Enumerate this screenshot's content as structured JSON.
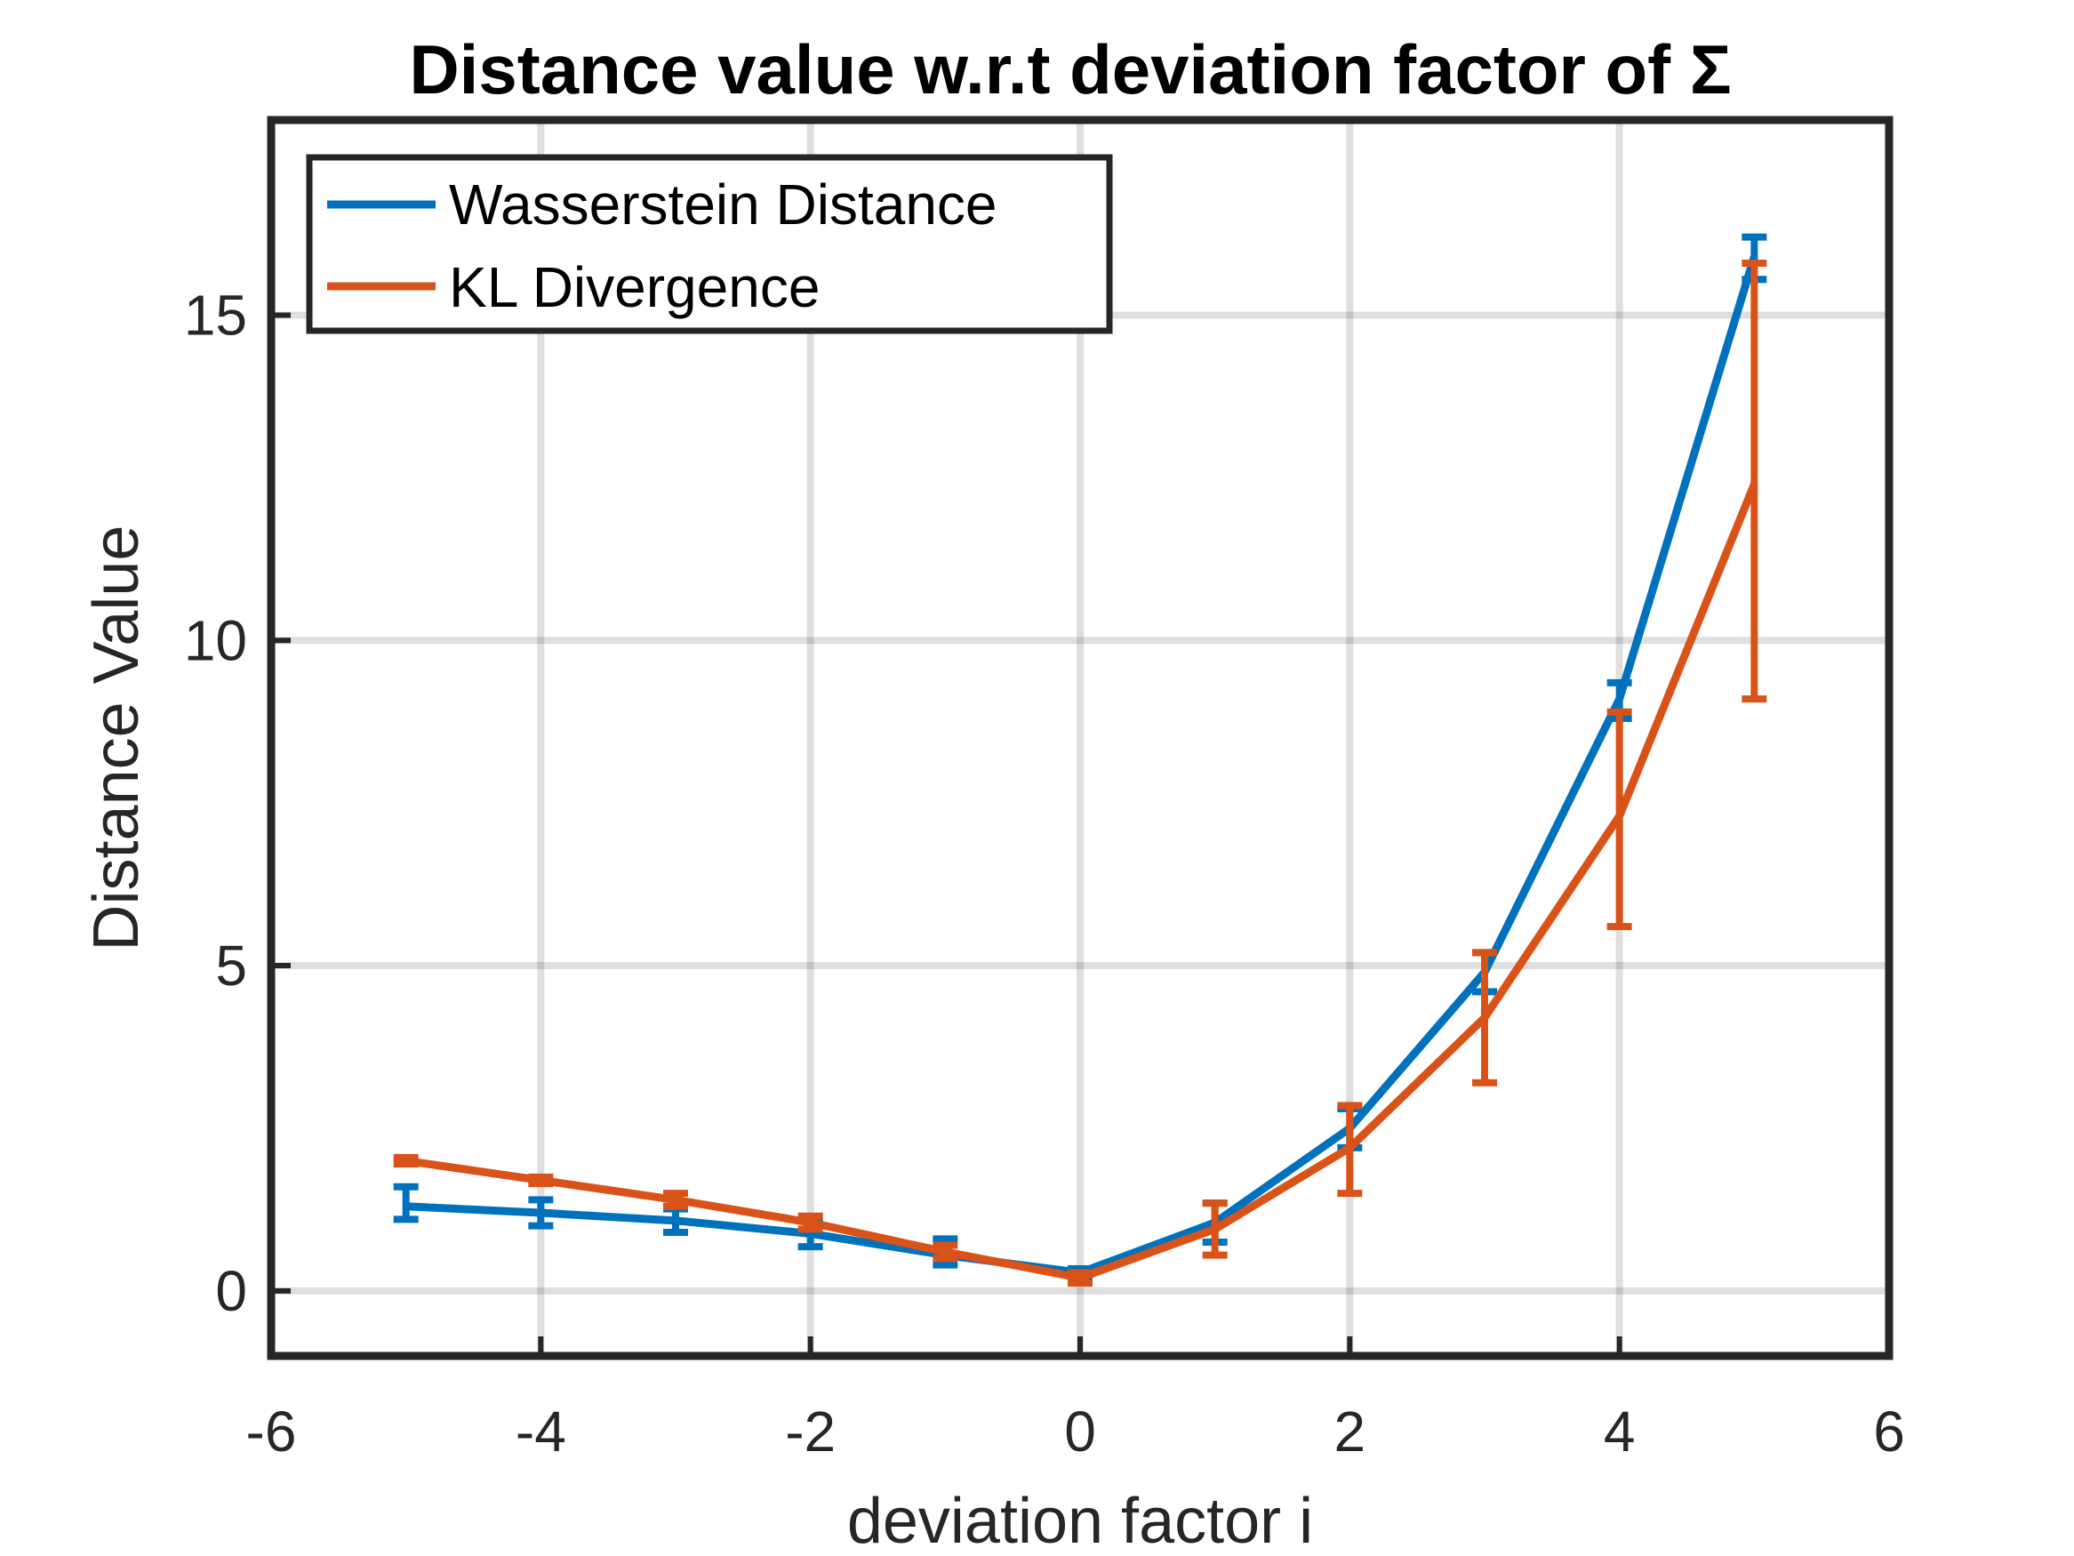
{
  "chart_data": {
    "type": "line",
    "title": "Distance value w.r.t deviation factor of Σ",
    "xlabel": "deviation factor i",
    "ylabel": "Distance Value",
    "xlim": [
      -6,
      6
    ],
    "ylim": [
      -1,
      18
    ],
    "xticks": [
      -6,
      -4,
      -2,
      0,
      2,
      4,
      6
    ],
    "yticks": [
      0,
      5,
      10,
      15
    ],
    "xtick_labels": [
      "-6",
      "-4",
      "-2",
      "0",
      "2",
      "4",
      "6"
    ],
    "ytick_labels": [
      "0",
      "5",
      "10",
      "15"
    ],
    "grid": true,
    "legend_position": "top-left",
    "x": [
      -5,
      -4,
      -3,
      -2,
      -1,
      0,
      1,
      2,
      3,
      4,
      5
    ],
    "series": [
      {
        "name": "Wasserstein Distance",
        "color": "#0072BD",
        "values": [
          1.3,
          1.2,
          1.08,
          0.88,
          0.55,
          0.28,
          1.05,
          2.5,
          4.9,
          9.1,
          15.9
        ],
        "err_low": [
          0.2,
          0.2,
          0.18,
          0.2,
          0.15,
          0.06,
          0.3,
          0.3,
          0.3,
          0.3,
          0.35
        ],
        "err_high": [
          0.3,
          0.2,
          0.18,
          0.2,
          0.25,
          0.06,
          0.3,
          0.3,
          0.3,
          0.25,
          0.3
        ]
      },
      {
        "name": "KL Divergence",
        "color": "#D95319",
        "values": [
          2.0,
          1.7,
          1.4,
          1.05,
          0.6,
          0.2,
          0.95,
          2.2,
          4.2,
          7.3,
          12.4
        ],
        "err_low": [
          0.05,
          0.05,
          0.1,
          0.1,
          0.1,
          0.08,
          0.4,
          0.7,
          1.0,
          1.7,
          3.3
        ],
        "err_high": [
          0.05,
          0.05,
          0.1,
          0.1,
          0.1,
          0.08,
          0.4,
          0.65,
          1.0,
          1.6,
          3.4
        ]
      }
    ]
  }
}
